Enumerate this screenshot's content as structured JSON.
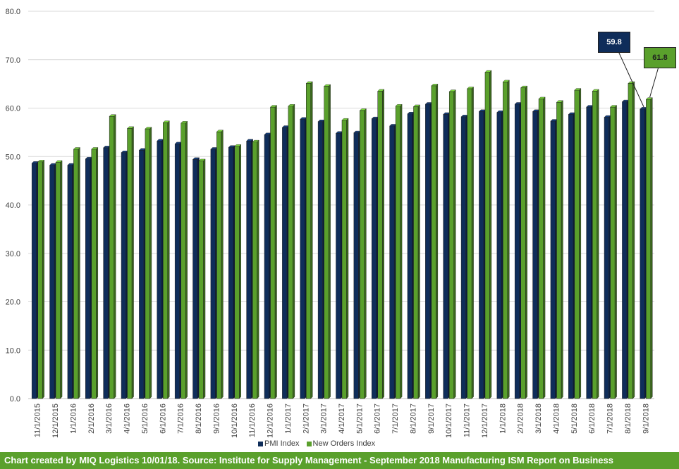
{
  "chart_data": {
    "type": "bar",
    "categories": [
      "11/1/2015",
      "12/1/2015",
      "1/1/2016",
      "2/1/2016",
      "3/1/2016",
      "4/1/2016",
      "5/1/2016",
      "6/1/2016",
      "7/1/2016",
      "8/1/2016",
      "9/1/2016",
      "10/1/2016",
      "11/1/2016",
      "12/1/2016",
      "1/1/2017",
      "2/1/2017",
      "3/1/2017",
      "4/1/2017",
      "5/1/2017",
      "6/1/2017",
      "7/1/2017",
      "8/1/2017",
      "9/1/2017",
      "10/1/2017",
      "11/1/2017",
      "12/1/2017",
      "1/1/2018",
      "2/1/2018",
      "3/1/2018",
      "4/1/2018",
      "5/1/2018",
      "6/1/2018",
      "7/1/2018",
      "8/1/2018",
      "9/1/2018"
    ],
    "series": [
      {
        "name": "PMI Index",
        "color": "#0f2d5a",
        "values": [
          48.6,
          48.2,
          48.2,
          49.5,
          51.8,
          50.8,
          51.3,
          53.2,
          52.6,
          49.4,
          51.5,
          51.9,
          53.2,
          54.5,
          56.0,
          57.7,
          57.2,
          54.8,
          54.9,
          57.8,
          56.3,
          58.8,
          60.8,
          58.7,
          58.2,
          59.3,
          59.1,
          60.8,
          59.3,
          57.3,
          58.7,
          60.2,
          58.1,
          61.3,
          59.8
        ]
      },
      {
        "name": "New Orders Index",
        "color": "#5aa02c",
        "values": [
          48.9,
          48.8,
          51.5,
          51.5,
          58.3,
          55.8,
          55.7,
          57.0,
          56.9,
          49.1,
          55.1,
          52.1,
          53.0,
          60.2,
          60.4,
          65.1,
          64.5,
          57.5,
          59.5,
          63.5,
          60.4,
          60.3,
          64.6,
          63.4,
          64.0,
          67.4,
          65.4,
          64.2,
          61.9,
          61.2,
          63.7,
          63.5,
          60.2,
          65.1,
          61.8
        ]
      }
    ],
    "yticks": [
      "0.0",
      "10.0",
      "20.0",
      "30.0",
      "40.0",
      "50.0",
      "60.0",
      "70.0",
      "80.0"
    ],
    "ylim": [
      0,
      80
    ],
    "grid": true,
    "legend_position": "bottom",
    "annotations": [
      {
        "text": "59.8",
        "series": "PMI Index",
        "category": "9/1/2018"
      },
      {
        "text": "61.8",
        "series": "New Orders Index",
        "category": "9/1/2018"
      }
    ]
  },
  "legend": {
    "pmi": "PMI Index",
    "new_orders": "New Orders Index"
  },
  "callouts": {
    "pmi": "59.8",
    "new_orders": "61.8"
  },
  "footer": "Chart created by MIQ Logistics 10/01/18. Source: Institute for Supply Management - September 2018 Manufacturing ISM Report on Business"
}
